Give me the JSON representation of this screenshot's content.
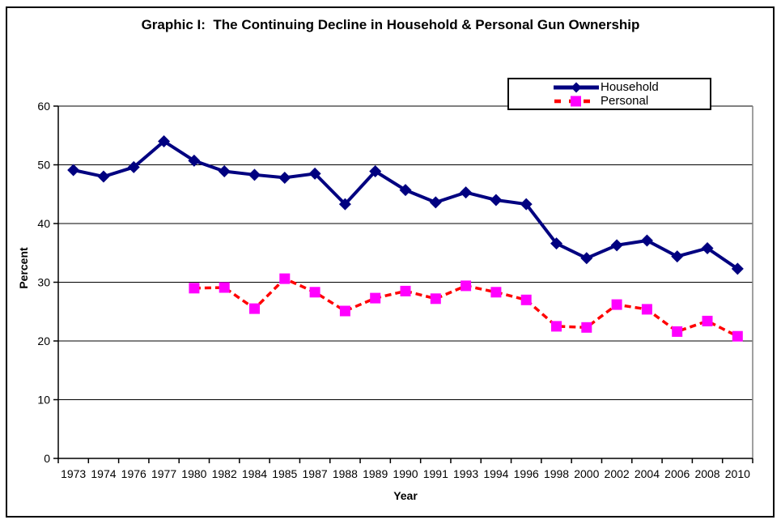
{
  "chart_data": {
    "type": "line",
    "title": "Graphic I:  The Continuing Decline in Household & Personal Gun Ownership",
    "xlabel": "Year",
    "ylabel": "Percent",
    "ylim": [
      0,
      60
    ],
    "yticks": [
      0,
      10,
      20,
      30,
      40,
      50,
      60
    ],
    "grid": true,
    "grid_color": "#000000",
    "plot_border_color": "#808080",
    "legend_position": "top-right",
    "categories": [
      "1973",
      "1974",
      "1976",
      "1977",
      "1980",
      "1982",
      "1984",
      "1985",
      "1987",
      "1988",
      "1989",
      "1990",
      "1991",
      "1993",
      "1994",
      "1996",
      "1998",
      "2000",
      "2002",
      "2004",
      "2006",
      "2008",
      "2010"
    ],
    "series": [
      {
        "name": "Household",
        "line_style": "solid",
        "color": "#000080",
        "marker": "diamond",
        "marker_color": "#000080",
        "values": [
          49.1,
          48.0,
          49.6,
          54.0,
          50.7,
          48.9,
          48.3,
          47.8,
          48.5,
          43.3,
          48.9,
          45.7,
          43.6,
          45.3,
          44.0,
          43.3,
          36.6,
          34.1,
          36.3,
          37.1,
          34.4,
          35.8,
          32.3
        ]
      },
      {
        "name": "Personal",
        "line_style": "dashed",
        "color": "#FF0000",
        "marker": "square",
        "marker_color": "#FF00FF",
        "values": [
          null,
          null,
          null,
          null,
          29.0,
          29.1,
          25.5,
          30.6,
          28.3,
          25.1,
          27.3,
          28.5,
          27.2,
          29.4,
          28.3,
          27.0,
          22.5,
          22.3,
          26.2,
          25.4,
          21.6,
          23.4,
          20.8
        ]
      }
    ]
  }
}
